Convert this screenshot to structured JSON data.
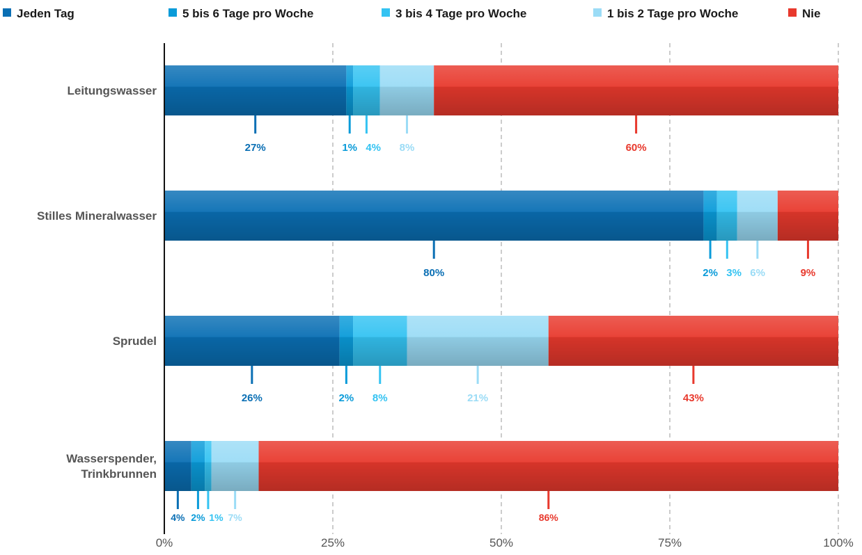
{
  "chart_data": {
    "type": "bar",
    "stacked": true,
    "orientation": "horizontal",
    "categories": [
      [
        "Leitungswasser"
      ],
      [
        "Stilles Mineralwasser"
      ],
      [
        "Sprudel"
      ],
      [
        "Wasserspender,",
        "Trinkbrunnen"
      ]
    ],
    "series": [
      {
        "name": "Jeden Tag",
        "color": "#0a6fb4",
        "values": [
          27,
          80,
          26,
          4
        ],
        "labels": [
          "27%",
          "80%",
          "26%",
          "4%"
        ]
      },
      {
        "name": "5 bis 6 Tage pro Woche",
        "color": "#0a9bd9",
        "values": [
          1,
          2,
          2,
          2
        ],
        "labels": [
          "1%",
          "2%",
          "2%",
          "2%"
        ]
      },
      {
        "name": "3 bis 4 Tage pro Woche",
        "color": "#34c3f2",
        "values": [
          4,
          3,
          8,
          1
        ],
        "labels": [
          "4%",
          "3%",
          "8%",
          "1%"
        ]
      },
      {
        "name": "1 bis 2 Tage pro Woche",
        "color": "#9bdcf6",
        "values": [
          8,
          6,
          21,
          7
        ],
        "labels": [
          "8%",
          "6%",
          "21%",
          "7%"
        ]
      },
      {
        "name": "Nie",
        "color": "#e8392d",
        "values": [
          60,
          9,
          43,
          86
        ],
        "labels": [
          "60%",
          "9%",
          "43%",
          "86%"
        ]
      }
    ],
    "x_ticks": [
      "0%",
      "25%",
      "50%",
      "75%",
      "100%"
    ],
    "xlim": [
      0,
      100
    ],
    "grid": true,
    "legend_position": "top"
  }
}
